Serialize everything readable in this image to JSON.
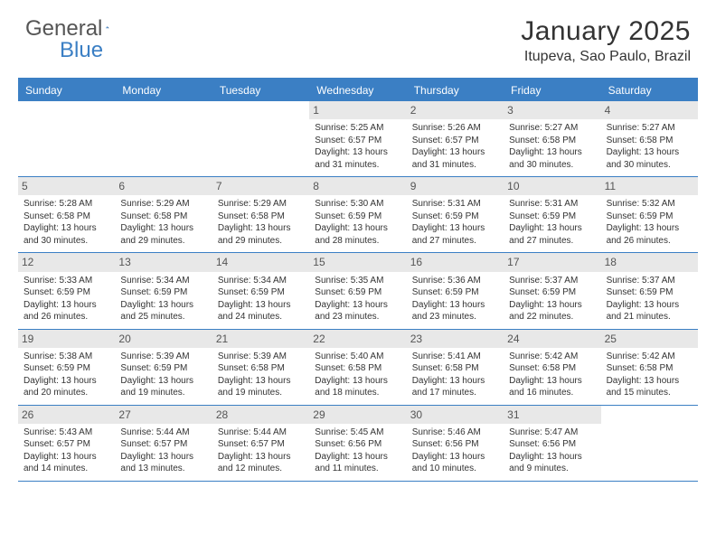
{
  "logo": {
    "text_gray": "General",
    "text_blue": "Blue"
  },
  "header": {
    "month_title": "January 2025",
    "location": "Itupeva, Sao Paulo, Brazil"
  },
  "colors": {
    "accent": "#3b7fc4",
    "header_text": "#ffffff",
    "daynum_bg": "#e8e8e8",
    "body_text": "#333333",
    "logo_gray": "#555555"
  },
  "day_names": [
    "Sunday",
    "Monday",
    "Tuesday",
    "Wednesday",
    "Thursday",
    "Friday",
    "Saturday"
  ],
  "weeks": [
    [
      null,
      null,
      null,
      {
        "n": "1",
        "sr": "Sunrise: 5:25 AM",
        "ss": "Sunset: 6:57 PM",
        "d1": "Daylight: 13 hours",
        "d2": "and 31 minutes."
      },
      {
        "n": "2",
        "sr": "Sunrise: 5:26 AM",
        "ss": "Sunset: 6:57 PM",
        "d1": "Daylight: 13 hours",
        "d2": "and 31 minutes."
      },
      {
        "n": "3",
        "sr": "Sunrise: 5:27 AM",
        "ss": "Sunset: 6:58 PM",
        "d1": "Daylight: 13 hours",
        "d2": "and 30 minutes."
      },
      {
        "n": "4",
        "sr": "Sunrise: 5:27 AM",
        "ss": "Sunset: 6:58 PM",
        "d1": "Daylight: 13 hours",
        "d2": "and 30 minutes."
      }
    ],
    [
      {
        "n": "5",
        "sr": "Sunrise: 5:28 AM",
        "ss": "Sunset: 6:58 PM",
        "d1": "Daylight: 13 hours",
        "d2": "and 30 minutes."
      },
      {
        "n": "6",
        "sr": "Sunrise: 5:29 AM",
        "ss": "Sunset: 6:58 PM",
        "d1": "Daylight: 13 hours",
        "d2": "and 29 minutes."
      },
      {
        "n": "7",
        "sr": "Sunrise: 5:29 AM",
        "ss": "Sunset: 6:58 PM",
        "d1": "Daylight: 13 hours",
        "d2": "and 29 minutes."
      },
      {
        "n": "8",
        "sr": "Sunrise: 5:30 AM",
        "ss": "Sunset: 6:59 PM",
        "d1": "Daylight: 13 hours",
        "d2": "and 28 minutes."
      },
      {
        "n": "9",
        "sr": "Sunrise: 5:31 AM",
        "ss": "Sunset: 6:59 PM",
        "d1": "Daylight: 13 hours",
        "d2": "and 27 minutes."
      },
      {
        "n": "10",
        "sr": "Sunrise: 5:31 AM",
        "ss": "Sunset: 6:59 PM",
        "d1": "Daylight: 13 hours",
        "d2": "and 27 minutes."
      },
      {
        "n": "11",
        "sr": "Sunrise: 5:32 AM",
        "ss": "Sunset: 6:59 PM",
        "d1": "Daylight: 13 hours",
        "d2": "and 26 minutes."
      }
    ],
    [
      {
        "n": "12",
        "sr": "Sunrise: 5:33 AM",
        "ss": "Sunset: 6:59 PM",
        "d1": "Daylight: 13 hours",
        "d2": "and 26 minutes."
      },
      {
        "n": "13",
        "sr": "Sunrise: 5:34 AM",
        "ss": "Sunset: 6:59 PM",
        "d1": "Daylight: 13 hours",
        "d2": "and 25 minutes."
      },
      {
        "n": "14",
        "sr": "Sunrise: 5:34 AM",
        "ss": "Sunset: 6:59 PM",
        "d1": "Daylight: 13 hours",
        "d2": "and 24 minutes."
      },
      {
        "n": "15",
        "sr": "Sunrise: 5:35 AM",
        "ss": "Sunset: 6:59 PM",
        "d1": "Daylight: 13 hours",
        "d2": "and 23 minutes."
      },
      {
        "n": "16",
        "sr": "Sunrise: 5:36 AM",
        "ss": "Sunset: 6:59 PM",
        "d1": "Daylight: 13 hours",
        "d2": "and 23 minutes."
      },
      {
        "n": "17",
        "sr": "Sunrise: 5:37 AM",
        "ss": "Sunset: 6:59 PM",
        "d1": "Daylight: 13 hours",
        "d2": "and 22 minutes."
      },
      {
        "n": "18",
        "sr": "Sunrise: 5:37 AM",
        "ss": "Sunset: 6:59 PM",
        "d1": "Daylight: 13 hours",
        "d2": "and 21 minutes."
      }
    ],
    [
      {
        "n": "19",
        "sr": "Sunrise: 5:38 AM",
        "ss": "Sunset: 6:59 PM",
        "d1": "Daylight: 13 hours",
        "d2": "and 20 minutes."
      },
      {
        "n": "20",
        "sr": "Sunrise: 5:39 AM",
        "ss": "Sunset: 6:59 PM",
        "d1": "Daylight: 13 hours",
        "d2": "and 19 minutes."
      },
      {
        "n": "21",
        "sr": "Sunrise: 5:39 AM",
        "ss": "Sunset: 6:58 PM",
        "d1": "Daylight: 13 hours",
        "d2": "and 19 minutes."
      },
      {
        "n": "22",
        "sr": "Sunrise: 5:40 AM",
        "ss": "Sunset: 6:58 PM",
        "d1": "Daylight: 13 hours",
        "d2": "and 18 minutes."
      },
      {
        "n": "23",
        "sr": "Sunrise: 5:41 AM",
        "ss": "Sunset: 6:58 PM",
        "d1": "Daylight: 13 hours",
        "d2": "and 17 minutes."
      },
      {
        "n": "24",
        "sr": "Sunrise: 5:42 AM",
        "ss": "Sunset: 6:58 PM",
        "d1": "Daylight: 13 hours",
        "d2": "and 16 minutes."
      },
      {
        "n": "25",
        "sr": "Sunrise: 5:42 AM",
        "ss": "Sunset: 6:58 PM",
        "d1": "Daylight: 13 hours",
        "d2": "and 15 minutes."
      }
    ],
    [
      {
        "n": "26",
        "sr": "Sunrise: 5:43 AM",
        "ss": "Sunset: 6:57 PM",
        "d1": "Daylight: 13 hours",
        "d2": "and 14 minutes."
      },
      {
        "n": "27",
        "sr": "Sunrise: 5:44 AM",
        "ss": "Sunset: 6:57 PM",
        "d1": "Daylight: 13 hours",
        "d2": "and 13 minutes."
      },
      {
        "n": "28",
        "sr": "Sunrise: 5:44 AM",
        "ss": "Sunset: 6:57 PM",
        "d1": "Daylight: 13 hours",
        "d2": "and 12 minutes."
      },
      {
        "n": "29",
        "sr": "Sunrise: 5:45 AM",
        "ss": "Sunset: 6:56 PM",
        "d1": "Daylight: 13 hours",
        "d2": "and 11 minutes."
      },
      {
        "n": "30",
        "sr": "Sunrise: 5:46 AM",
        "ss": "Sunset: 6:56 PM",
        "d1": "Daylight: 13 hours",
        "d2": "and 10 minutes."
      },
      {
        "n": "31",
        "sr": "Sunrise: 5:47 AM",
        "ss": "Sunset: 6:56 PM",
        "d1": "Daylight: 13 hours",
        "d2": "and 9 minutes."
      },
      null
    ]
  ]
}
